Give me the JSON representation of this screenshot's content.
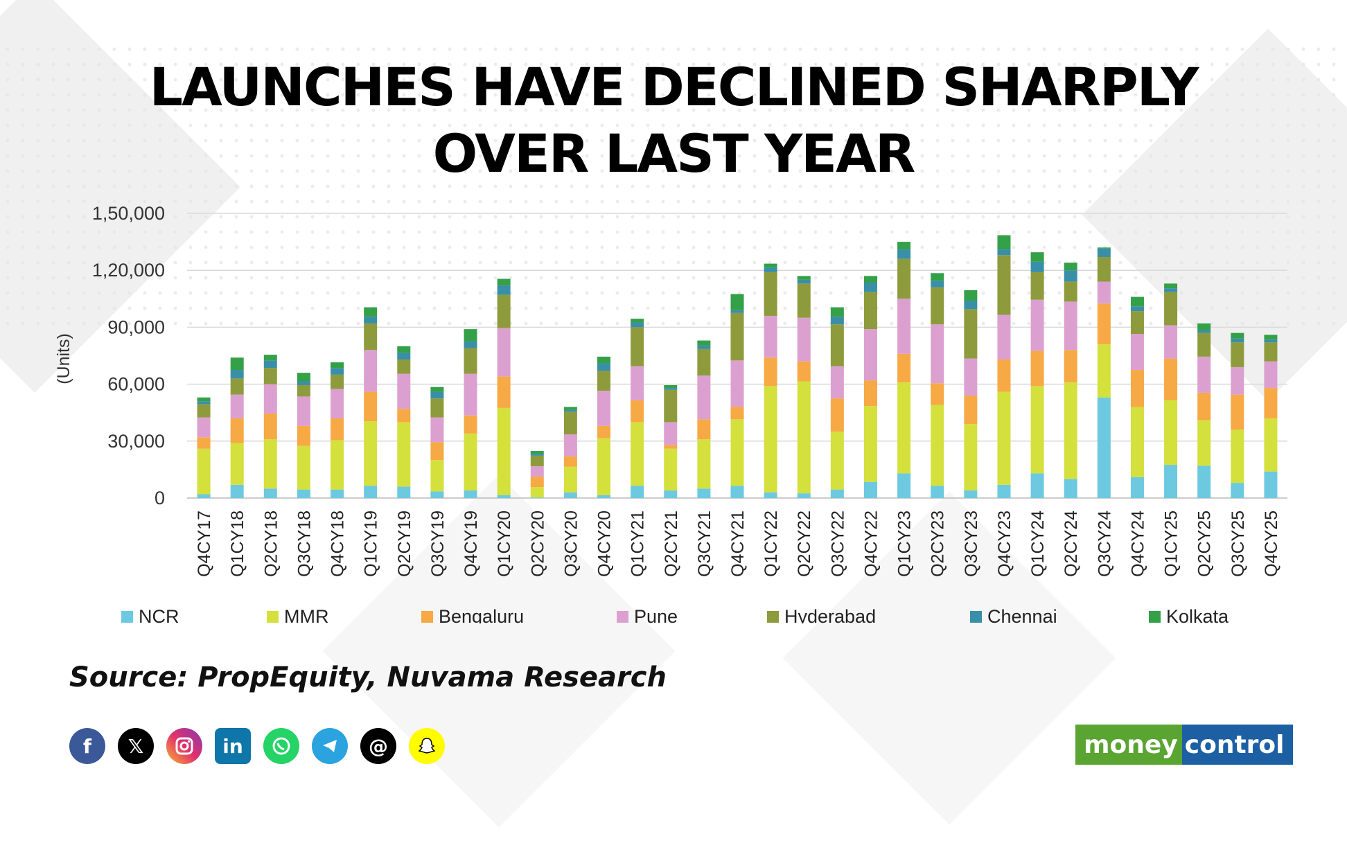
{
  "title_line1": "LAUNCHES HAVE DECLINED SHARPLY",
  "title_line2": "OVER LAST YEAR",
  "source": "Source: PropEquity, Nuvama Research",
  "logo": {
    "part1": "money",
    "part2": "control"
  },
  "social_icons": [
    "facebook-icon",
    "x-icon",
    "instagram-icon",
    "linkedin-icon",
    "whatsapp-icon",
    "telegram-icon",
    "threads-icon",
    "snapchat-icon"
  ],
  "chart_data": {
    "type": "bar",
    "stacked": true,
    "ylabel": "(Units)",
    "ylim": [
      0,
      150000
    ],
    "yticks": [
      0,
      30000,
      60000,
      90000,
      120000,
      150000
    ],
    "ytick_labels": [
      "0",
      "30,000",
      "60,000",
      "90,000",
      "1,20,000",
      "1,50,000"
    ],
    "grid": true,
    "legend_position": "bottom",
    "categories": [
      "Q4CY17",
      "Q1CY18",
      "Q2CY18",
      "Q3CY18",
      "Q4CY18",
      "Q1CY19",
      "Q2CY19",
      "Q3CY19",
      "Q4CY19",
      "Q1CY20",
      "Q2CY20",
      "Q3CY20",
      "Q4CY20",
      "Q1CY21",
      "Q2CY21",
      "Q3CY21",
      "Q4CY21",
      "Q1CY22",
      "Q2CY22",
      "Q3CY22",
      "Q4CY22",
      "Q1CY23",
      "Q2CY23",
      "Q3CY23",
      "Q4CY23",
      "Q1CY24",
      "Q2CY24",
      "Q3CY24",
      "Q4CY24",
      "Q1CY25",
      "Q2CY25",
      "Q3CY25",
      "Q4CY25"
    ],
    "series": [
      {
        "name": "NCR",
        "color": "#6cc9df",
        "values": [
          2000,
          7000,
          5000,
          4500,
          4500,
          6500,
          6000,
          3500,
          4000,
          1500,
          300,
          3000,
          1500,
          6500,
          4000,
          5000,
          6500,
          3000,
          2500,
          4500,
          8500,
          13000,
          6500,
          4000,
          7000,
          13000,
          10000,
          53000,
          11000,
          17500,
          17000,
          8000,
          14000
        ]
      },
      {
        "name": "MMR",
        "color": "#d4e03c",
        "values": [
          24000,
          22000,
          26000,
          23000,
          26000,
          34000,
          34000,
          16500,
          30000,
          46000,
          5500,
          13500,
          30000,
          33500,
          22000,
          26000,
          35000,
          56000,
          59000,
          30500,
          40000,
          48000,
          42500,
          35000,
          49000,
          46000,
          51000,
          28000,
          37000,
          34000,
          24000,
          28000,
          28000
        ]
      },
      {
        "name": "Bengaluru",
        "color": "#f6a944",
        "values": [
          6000,
          13000,
          13500,
          10500,
          11500,
          15500,
          7000,
          9500,
          9500,
          16500,
          5500,
          5500,
          6500,
          11500,
          2000,
          10500,
          6500,
          15000,
          10500,
          17500,
          13500,
          15000,
          11500,
          15000,
          17000,
          18500,
          17000,
          21500,
          19500,
          22000,
          14500,
          18500,
          16000
        ]
      },
      {
        "name": "Pune",
        "color": "#dca0d0",
        "values": [
          10500,
          12500,
          15500,
          15500,
          15500,
          22000,
          18500,
          13000,
          22000,
          25500,
          5500,
          11500,
          18500,
          18000,
          12000,
          23000,
          24500,
          22000,
          23000,
          17000,
          27000,
          29000,
          31000,
          19500,
          23500,
          27000,
          25500,
          11500,
          19000,
          17500,
          19000,
          14500,
          14000
        ]
      },
      {
        "name": "Hyderabad",
        "color": "#8e9b3c",
        "values": [
          7000,
          8500,
          8500,
          6000,
          7500,
          14000,
          7500,
          10000,
          13500,
          17500,
          5500,
          12000,
          10500,
          20500,
          17000,
          14000,
          25000,
          23000,
          18000,
          22000,
          19500,
          21000,
          19500,
          26000,
          31500,
          14500,
          10500,
          13000,
          12000,
          17500,
          12500,
          13000,
          10000
        ]
      },
      {
        "name": "Chennai",
        "color": "#3a8fa8",
        "values": [
          1500,
          4500,
          4000,
          2000,
          3500,
          3500,
          3500,
          3500,
          3500,
          5000,
          1000,
          1000,
          4000,
          2500,
          1000,
          2000,
          1500,
          2500,
          2000,
          4000,
          5000,
          5000,
          3500,
          4500,
          3000,
          5500,
          6000,
          4500,
          2500,
          2000,
          1500,
          2000,
          1500
        ]
      },
      {
        "name": "Kolkata",
        "color": "#34a048",
        "values": [
          2000,
          6500,
          3000,
          4500,
          3000,
          5000,
          3500,
          2500,
          6500,
          3500,
          1500,
          1500,
          3500,
          2000,
          1500,
          2500,
          8500,
          2000,
          2000,
          5000,
          3500,
          4000,
          4000,
          5500,
          7500,
          5000,
          4000,
          500,
          5000,
          2500,
          3500,
          3000,
          2500
        ]
      }
    ]
  }
}
